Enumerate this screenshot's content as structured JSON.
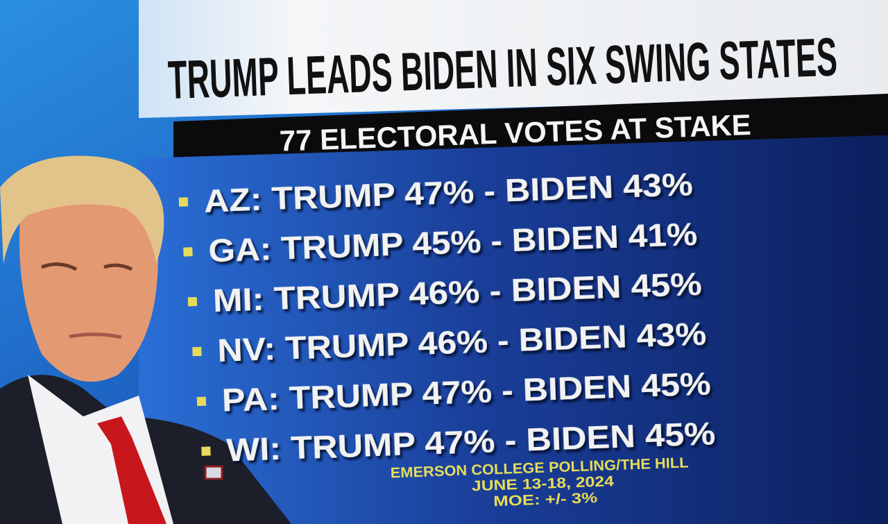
{
  "header": {
    "title": "TRUMP LEADS BIDEN IN SIX SWING STATES",
    "subtitle": "77 ELECTORAL VOTES AT STAKE"
  },
  "rows": [
    "AZ: TRUMP 47% - BIDEN 43%",
    "GA: TRUMP 45% - BIDEN 41%",
    "MI: TRUMP 46% - BIDEN 45%",
    "NV: TRUMP 46% - BIDEN 43%",
    "PA: TRUMP 47% - BIDEN 45%",
    "WI: TRUMP 47% - BIDEN 45%"
  ],
  "source": [
    "EMERSON COLLEGE POLLING/THE HILL",
    "JUNE 13-18, 2024",
    "MOE: +/- 3%"
  ]
}
